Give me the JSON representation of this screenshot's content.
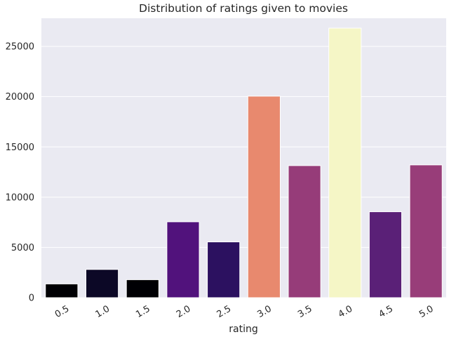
{
  "chart_data": {
    "type": "bar",
    "title": "Distribution of ratings given to movies",
    "xlabel": "rating",
    "ylabel": "",
    "categories": [
      "0.5",
      "1.0",
      "1.5",
      "2.0",
      "2.5",
      "3.0",
      "3.5",
      "4.0",
      "4.5",
      "5.0"
    ],
    "values": [
      1370,
      2810,
      1790,
      7550,
      5550,
      20050,
      13140,
      26820,
      8550,
      13210
    ],
    "colors": [
      "#000004",
      "#0c0826",
      "#000004",
      "#51127c",
      "#2c1160",
      "#e8896e",
      "#963c79",
      "#f5f6c6",
      "#5a2077",
      "#983d79"
    ],
    "ylim": [
      0,
      27800
    ],
    "yticks": [
      0,
      5000,
      10000,
      15000,
      20000,
      25000
    ],
    "grid": true,
    "background": "#eaeaf2",
    "grid_color": "#ffffff"
  }
}
